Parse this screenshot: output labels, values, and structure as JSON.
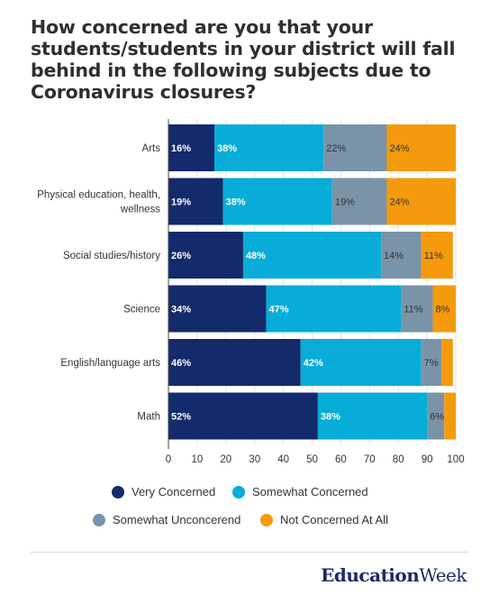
{
  "title": "How concerned are you that your students/students in your district will fall behind in the following subjects due to Coronavirus closures?",
  "chart_data": {
    "type": "bar",
    "orientation": "horizontal",
    "stacked": true,
    "categories": [
      "Arts",
      "Physical education, health, wellness",
      "Social studies/history",
      "Science",
      "English/language arts",
      "Math"
    ],
    "series": [
      {
        "name": "Very Concerned",
        "color": "#132a6b",
        "values": [
          16,
          19,
          26,
          34,
          46,
          52
        ],
        "labels": [
          "16%",
          "19%",
          "26%",
          "34%",
          "46%",
          "52%"
        ]
      },
      {
        "name": "Somewhat Concerned",
        "color": "#08acd8",
        "values": [
          38,
          38,
          48,
          47,
          42,
          38
        ],
        "labels": [
          "38%",
          "38%",
          "48%",
          "47%",
          "42%",
          "38%"
        ]
      },
      {
        "name": "Somewhat Unconcerend",
        "color": "#7994a8",
        "values": [
          22,
          19,
          14,
          11,
          7,
          6
        ],
        "labels": [
          "22%",
          "19%",
          "14%",
          "11%",
          "7%",
          "6%"
        ]
      },
      {
        "name": "Not Concerned At All",
        "color": "#f59a0d",
        "values": [
          24,
          24,
          11,
          8,
          4,
          4
        ],
        "labels": [
          "24%",
          "24%",
          "11%",
          "8%",
          "",
          ""
        ]
      }
    ],
    "xticks": [
      "0",
      "10",
      "20",
      "30",
      "40",
      "50",
      "60",
      "70",
      "80",
      "90",
      "100"
    ],
    "xlim": [
      0,
      100
    ],
    "legend_position": "bottom"
  },
  "legend_items": [
    "Very Concerned",
    "Somewhat Concerned",
    "Somewhat Unconcerend",
    "Not Concerned At All"
  ],
  "brand": {
    "part1": "Education",
    "part2": "Week"
  }
}
